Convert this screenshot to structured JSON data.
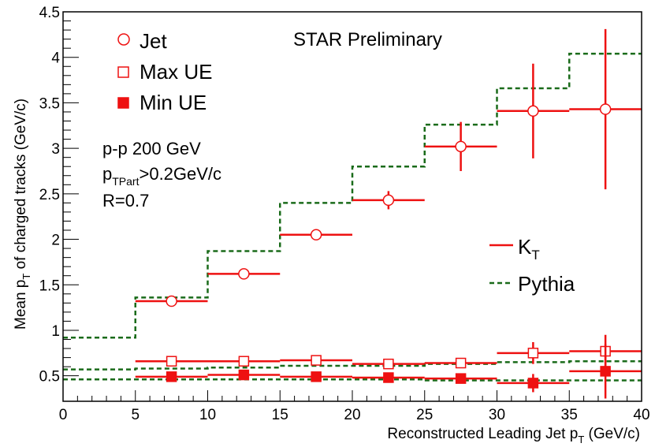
{
  "chart_data": {
    "type": "scatter",
    "title": "STAR Preliminary",
    "xlabel_main": "Reconstructed Leading Jet p",
    "xlabel_sub": "T",
    "xlabel_tail": " (GeV/c)",
    "ylabel_main": "Mean p",
    "ylabel_sub": "T",
    "ylabel_tail": " of charged tracks (GeV/c)",
    "xlim": [
      0,
      40
    ],
    "ylim": [
      0.22,
      4.5
    ],
    "x_ticks": [
      0,
      5,
      10,
      15,
      20,
      25,
      30,
      35,
      40
    ],
    "x_tick_labels": [
      "0",
      "5",
      "10",
      "15",
      "20",
      "25",
      "30",
      "35",
      "40"
    ],
    "y_ticks": [
      0.5,
      1,
      1.5,
      2,
      2.5,
      3,
      3.5,
      4,
      4.5
    ],
    "y_tick_labels": [
      "0.5",
      "1",
      "1.5",
      "2",
      "2.5",
      "3",
      "3.5",
      "4",
      "4.5"
    ],
    "grid": false,
    "legend_markers": {
      "jet": "Jet",
      "max_ue": "Max UE",
      "min_ue": "Min UE"
    },
    "legend_lines": {
      "kt_main": "K",
      "kt_sub": "T",
      "pythia": "Pythia"
    },
    "annotations": {
      "line1": "p-p 200 GeV",
      "line2_main": "p",
      "line2_sub": "TPart",
      "line2_tail": ">0.2GeV/c",
      "line3": "R=0.7"
    },
    "colors": {
      "data": "#ee1111",
      "pythia": "#1a6b1a"
    },
    "bins": [
      [
        5,
        10
      ],
      [
        10,
        15
      ],
      [
        15,
        20
      ],
      [
        20,
        25
      ],
      [
        25,
        30
      ],
      [
        30,
        35
      ],
      [
        35,
        40
      ]
    ],
    "series": [
      {
        "key": "jet",
        "marker": "open-circle",
        "points": [
          {
            "x": 7.5,
            "y": 1.32,
            "err": 0.03
          },
          {
            "x": 12.5,
            "y": 1.62,
            "err": 0.03
          },
          {
            "x": 17.5,
            "y": 2.05,
            "err": 0.03
          },
          {
            "x": 22.5,
            "y": 2.43,
            "err": 0.1
          },
          {
            "x": 27.5,
            "y": 3.02,
            "err": 0.27
          },
          {
            "x": 32.5,
            "y": 3.41,
            "err": 0.52
          },
          {
            "x": 37.5,
            "y": 3.43,
            "err": 0.88
          }
        ]
      },
      {
        "key": "max_ue",
        "marker": "open-square",
        "points": [
          {
            "x": 7.5,
            "y": 0.66,
            "err": 0.02
          },
          {
            "x": 12.5,
            "y": 0.66,
            "err": 0.02
          },
          {
            "x": 17.5,
            "y": 0.67,
            "err": 0.02
          },
          {
            "x": 22.5,
            "y": 0.63,
            "err": 0.03
          },
          {
            "x": 27.5,
            "y": 0.64,
            "err": 0.04
          },
          {
            "x": 32.5,
            "y": 0.75,
            "err": 0.12
          },
          {
            "x": 37.5,
            "y": 0.77,
            "err": 0.18
          }
        ]
      },
      {
        "key": "min_ue",
        "marker": "filled-square",
        "points": [
          {
            "x": 7.5,
            "y": 0.49,
            "err": 0.02
          },
          {
            "x": 12.5,
            "y": 0.51,
            "err": 0.02
          },
          {
            "x": 17.5,
            "y": 0.49,
            "err": 0.02
          },
          {
            "x": 22.5,
            "y": 0.48,
            "err": 0.02
          },
          {
            "x": 27.5,
            "y": 0.47,
            "err": 0.04
          },
          {
            "x": 32.5,
            "y": 0.42,
            "err": 0.1
          },
          {
            "x": 37.5,
            "y": 0.55,
            "err": 0.3
          }
        ]
      }
    ],
    "pythia": {
      "jet_steps": [
        {
          "x0": 0,
          "x1": 5,
          "y": 0.92
        },
        {
          "x0": 5,
          "x1": 10,
          "y": 1.36
        },
        {
          "x0": 10,
          "x1": 15,
          "y": 1.87
        },
        {
          "x0": 15,
          "x1": 20,
          "y": 2.4
        },
        {
          "x0": 20,
          "x1": 25,
          "y": 2.8
        },
        {
          "x0": 25,
          "x1": 30,
          "y": 3.26
        },
        {
          "x0": 30,
          "x1": 35,
          "y": 3.66
        },
        {
          "x0": 35,
          "x1": 40,
          "y": 4.04
        }
      ],
      "max_steps": [
        {
          "x0": 0,
          "x1": 5,
          "y": 0.57
        },
        {
          "x0": 5,
          "x1": 10,
          "y": 0.58
        },
        {
          "x0": 10,
          "x1": 15,
          "y": 0.59
        },
        {
          "x0": 15,
          "x1": 20,
          "y": 0.61
        },
        {
          "x0": 20,
          "x1": 25,
          "y": 0.61
        },
        {
          "x0": 25,
          "x1": 30,
          "y": 0.63
        },
        {
          "x0": 30,
          "x1": 35,
          "y": 0.65
        },
        {
          "x0": 35,
          "x1": 40,
          "y": 0.66
        }
      ],
      "min_steps": [
        {
          "x0": 0,
          "x1": 5,
          "y": 0.46
        },
        {
          "x0": 5,
          "x1": 10,
          "y": 0.46
        },
        {
          "x0": 10,
          "x1": 15,
          "y": 0.46
        },
        {
          "x0": 15,
          "x1": 20,
          "y": 0.46
        },
        {
          "x0": 20,
          "x1": 25,
          "y": 0.46
        },
        {
          "x0": 25,
          "x1": 30,
          "y": 0.45
        },
        {
          "x0": 30,
          "x1": 35,
          "y": 0.45
        },
        {
          "x0": 35,
          "x1": 40,
          "y": 0.45
        }
      ]
    }
  }
}
